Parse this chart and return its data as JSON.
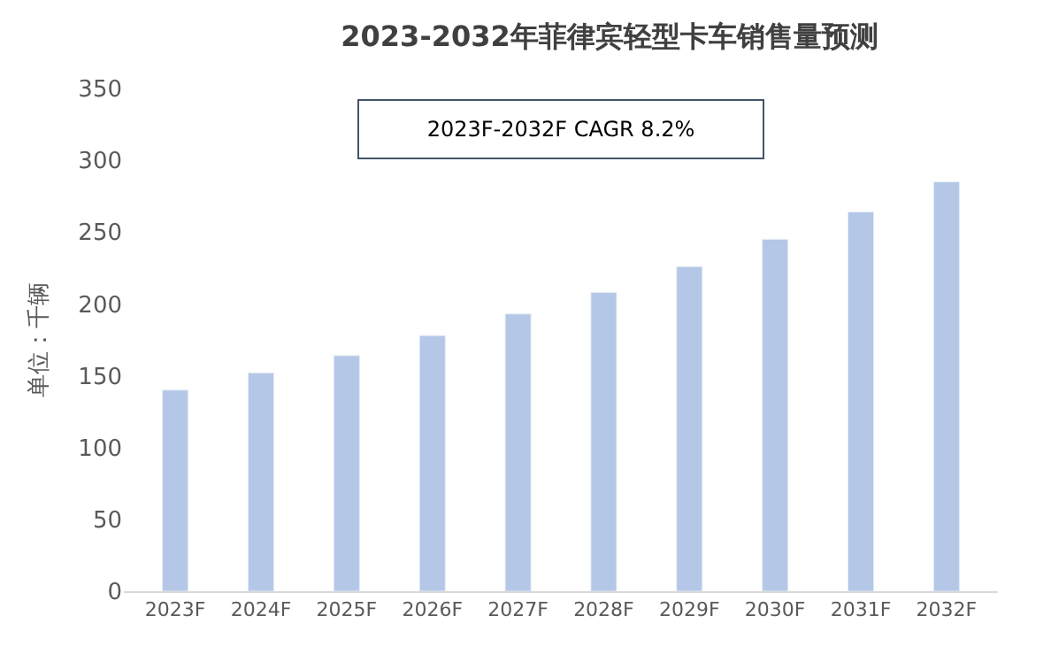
{
  "chart_data": {
    "type": "bar",
    "title": "2023-2032年菲律宾轻型卡车销售量预测",
    "ylabel": "单位：千辆",
    "categories": [
      "2023F",
      "2024F",
      "2025F",
      "2026F",
      "2027F",
      "2028F",
      "2029F",
      "2030F",
      "2031F",
      "2032F"
    ],
    "values": [
      140,
      152,
      164,
      178,
      193,
      208,
      226,
      245,
      264,
      285
    ],
    "color": "#b4c7e7",
    "ylim": [
      0,
      350
    ],
    "yticks": [
      0,
      50,
      100,
      150,
      200,
      250,
      300,
      350
    ],
    "grid": false,
    "legend": false,
    "annotations": [
      "2023F-2032F CAGR 8.2%"
    ]
  }
}
